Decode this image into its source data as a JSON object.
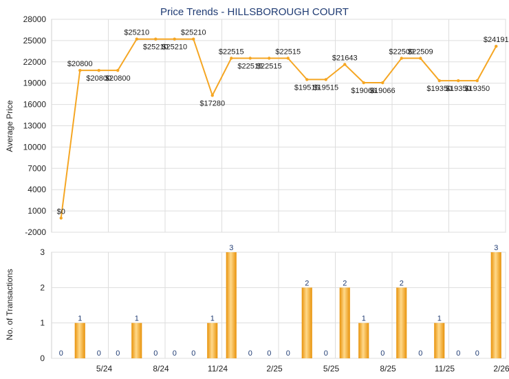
{
  "chart_data": [
    {
      "type": "line",
      "title": "Price Trends - HILLSBOROUGH COURT",
      "ylabel": "Average Price",
      "ylim": [
        -2000,
        28000
      ],
      "yticks": [
        -2000,
        1000,
        4000,
        7000,
        10000,
        13000,
        16000,
        19000,
        22000,
        25000,
        28000
      ],
      "grid": true,
      "color": "#f5a623",
      "label_prefix": "$",
      "values": [
        0,
        20800,
        20800,
        20800,
        25210,
        25210,
        25210,
        25210,
        17280,
        22515,
        22515,
        22515,
        22515,
        19515,
        19515,
        21643,
        19066,
        19066,
        22509,
        22509,
        19350,
        19350,
        19350,
        24191
      ]
    },
    {
      "type": "bar",
      "ylabel": "No. of Transactions",
      "ylim": [
        0,
        3
      ],
      "yticks": [
        0,
        1,
        2,
        3
      ],
      "grid": true,
      "color": "#f5a623",
      "values": [
        0,
        1,
        0,
        0,
        1,
        0,
        0,
        0,
        1,
        3,
        0,
        0,
        0,
        2,
        0,
        2,
        1,
        0,
        2,
        0,
        1,
        0,
        0,
        3
      ],
      "x_tick_labels": [
        {
          "index": 2,
          "label": "5/24"
        },
        {
          "index": 5,
          "label": "8/24"
        },
        {
          "index": 8,
          "label": "11/24"
        },
        {
          "index": 11,
          "label": "2/25"
        },
        {
          "index": 14,
          "label": "5/25"
        },
        {
          "index": 17,
          "label": "8/25"
        },
        {
          "index": 20,
          "label": "11/25"
        },
        {
          "index": 23,
          "label": "2/26"
        }
      ]
    }
  ]
}
